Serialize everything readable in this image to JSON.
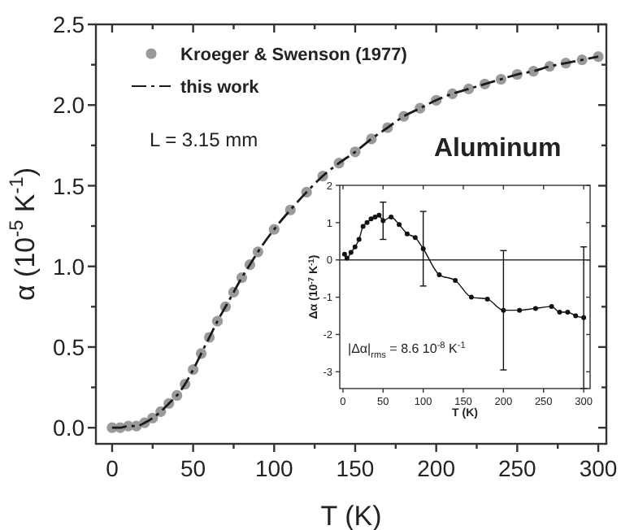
{
  "chart_data": [
    {
      "type": "line",
      "xlabel": "T (K)",
      "ylabel": "α (10$^{-5}$ K$^{-1}$)",
      "xlim": [
        -10,
        305
      ],
      "ylim": [
        -0.1,
        2.5
      ],
      "xticks": [
        0,
        {
          "value": 25,
          "label": null
        },
        50,
        {
          "value": 75,
          "label": null
        },
        100,
        {
          "value": 125,
          "label": null
        },
        150,
        {
          "value": 175,
          "label": null
        },
        200,
        {
          "value": 225,
          "label": null
        },
        250,
        {
          "value": 275,
          "label": null
        },
        300
      ],
      "yticks": [
        {
          "value": 0.0,
          "label": "0.0"
        },
        {
          "value": 0.25,
          "label": null
        },
        {
          "value": 0.5,
          "label": "0.5"
        },
        {
          "value": 0.75,
          "label": null
        },
        {
          "value": 1.0,
          "label": "1.0"
        },
        {
          "value": 1.25,
          "label": null
        },
        {
          "value": 1.5,
          "label": "1.5"
        },
        {
          "value": 1.75,
          "label": null
        },
        {
          "value": 2.0,
          "label": "2.0"
        },
        {
          "value": 2.25,
          "label": null
        },
        {
          "value": 2.5,
          "label": "2.5"
        }
      ],
      "x": [
        0,
        5,
        10,
        15,
        20,
        25,
        30,
        35,
        40,
        45,
        50,
        55,
        60,
        65,
        70,
        75,
        80,
        85,
        90,
        100,
        110,
        120,
        130,
        140,
        150,
        160,
        170,
        180,
        190,
        200,
        210,
        220,
        230,
        240,
        250,
        260,
        270,
        280,
        290,
        300
      ],
      "series": [
        {
          "name": "Kroeger & Swenson (1977)",
          "type": "scatter",
          "marker": "circle",
          "color": "#9a9a9a",
          "values": [
            0,
            0,
            0.01,
            0.01,
            0.03,
            0.06,
            0.1,
            0.15,
            0.2,
            0.27,
            0.36,
            0.46,
            0.56,
            0.66,
            0.75,
            0.84,
            0.93,
            1.01,
            1.09,
            1.23,
            1.35,
            1.46,
            1.56,
            1.64,
            1.71,
            1.79,
            1.86,
            1.93,
            1.98,
            2.03,
            2.07,
            2.1,
            2.13,
            2.16,
            2.19,
            2.21,
            2.24,
            2.26,
            2.28,
            2.3
          ]
        },
        {
          "name": "this work",
          "type": "line",
          "marker": "none",
          "line_style": "dashed",
          "color": "#1a1a1a",
          "values": [
            0,
            0,
            0.01,
            0.01,
            0.03,
            0.06,
            0.1,
            0.15,
            0.2,
            0.27,
            0.36,
            0.46,
            0.56,
            0.66,
            0.75,
            0.84,
            0.93,
            1.01,
            1.09,
            1.23,
            1.35,
            1.46,
            1.56,
            1.64,
            1.71,
            1.79,
            1.86,
            1.93,
            1.98,
            2.03,
            2.07,
            2.1,
            2.13,
            2.16,
            2.19,
            2.21,
            2.24,
            2.26,
            2.28,
            2.3
          ]
        }
      ],
      "legend": "top left",
      "annotations": [
        "L = 3.15 mm",
        "Aluminum"
      ]
    },
    {
      "type": "line",
      "xlabel": "T (K)",
      "ylabel": "Δα (10$^{-7}$ K$^{-1}$)",
      "xlim": [
        -4,
        308
      ],
      "ylim": [
        -3.45,
        2
      ],
      "xticks": [
        0,
        50,
        100,
        150,
        200,
        250,
        300
      ],
      "yticks": [
        -3,
        -2,
        -1,
        0,
        1,
        2
      ],
      "x": [
        2,
        5,
        10,
        15,
        20,
        25,
        30,
        35,
        40,
        45,
        50,
        60,
        70,
        80,
        90,
        100,
        120,
        140,
        160,
        180,
        200,
        220,
        240,
        260,
        270,
        280,
        290,
        300
      ],
      "series": [
        {
          "marker": "circle",
          "color": "#111111",
          "values": [
            0.15,
            0.05,
            0.2,
            0.35,
            0.55,
            0.9,
            1.0,
            1.1,
            1.15,
            1.2,
            1.05,
            1.15,
            0.95,
            0.7,
            0.6,
            0.3,
            -0.4,
            -0.55,
            -1.0,
            -1.05,
            -1.35,
            -1.35,
            -1.3,
            -1.25,
            -1.4,
            -1.4,
            -1.5,
            -1.55
          ],
          "errors": [
            null,
            null,
            null,
            null,
            null,
            null,
            null,
            null,
            null,
            null,
            0.5,
            null,
            null,
            null,
            null,
            1.0,
            null,
            null,
            null,
            null,
            1.6,
            null,
            null,
            null,
            null,
            null,
            null,
            1.9
          ]
        }
      ],
      "ref_lines": [
        {
          "axis": "y",
          "value": 0,
          "color": "#333333"
        }
      ],
      "annotations": [
        "|Δα|$_{rms}$ = 8.6 10$^{-8}$ K$^{-1}$"
      ]
    }
  ]
}
